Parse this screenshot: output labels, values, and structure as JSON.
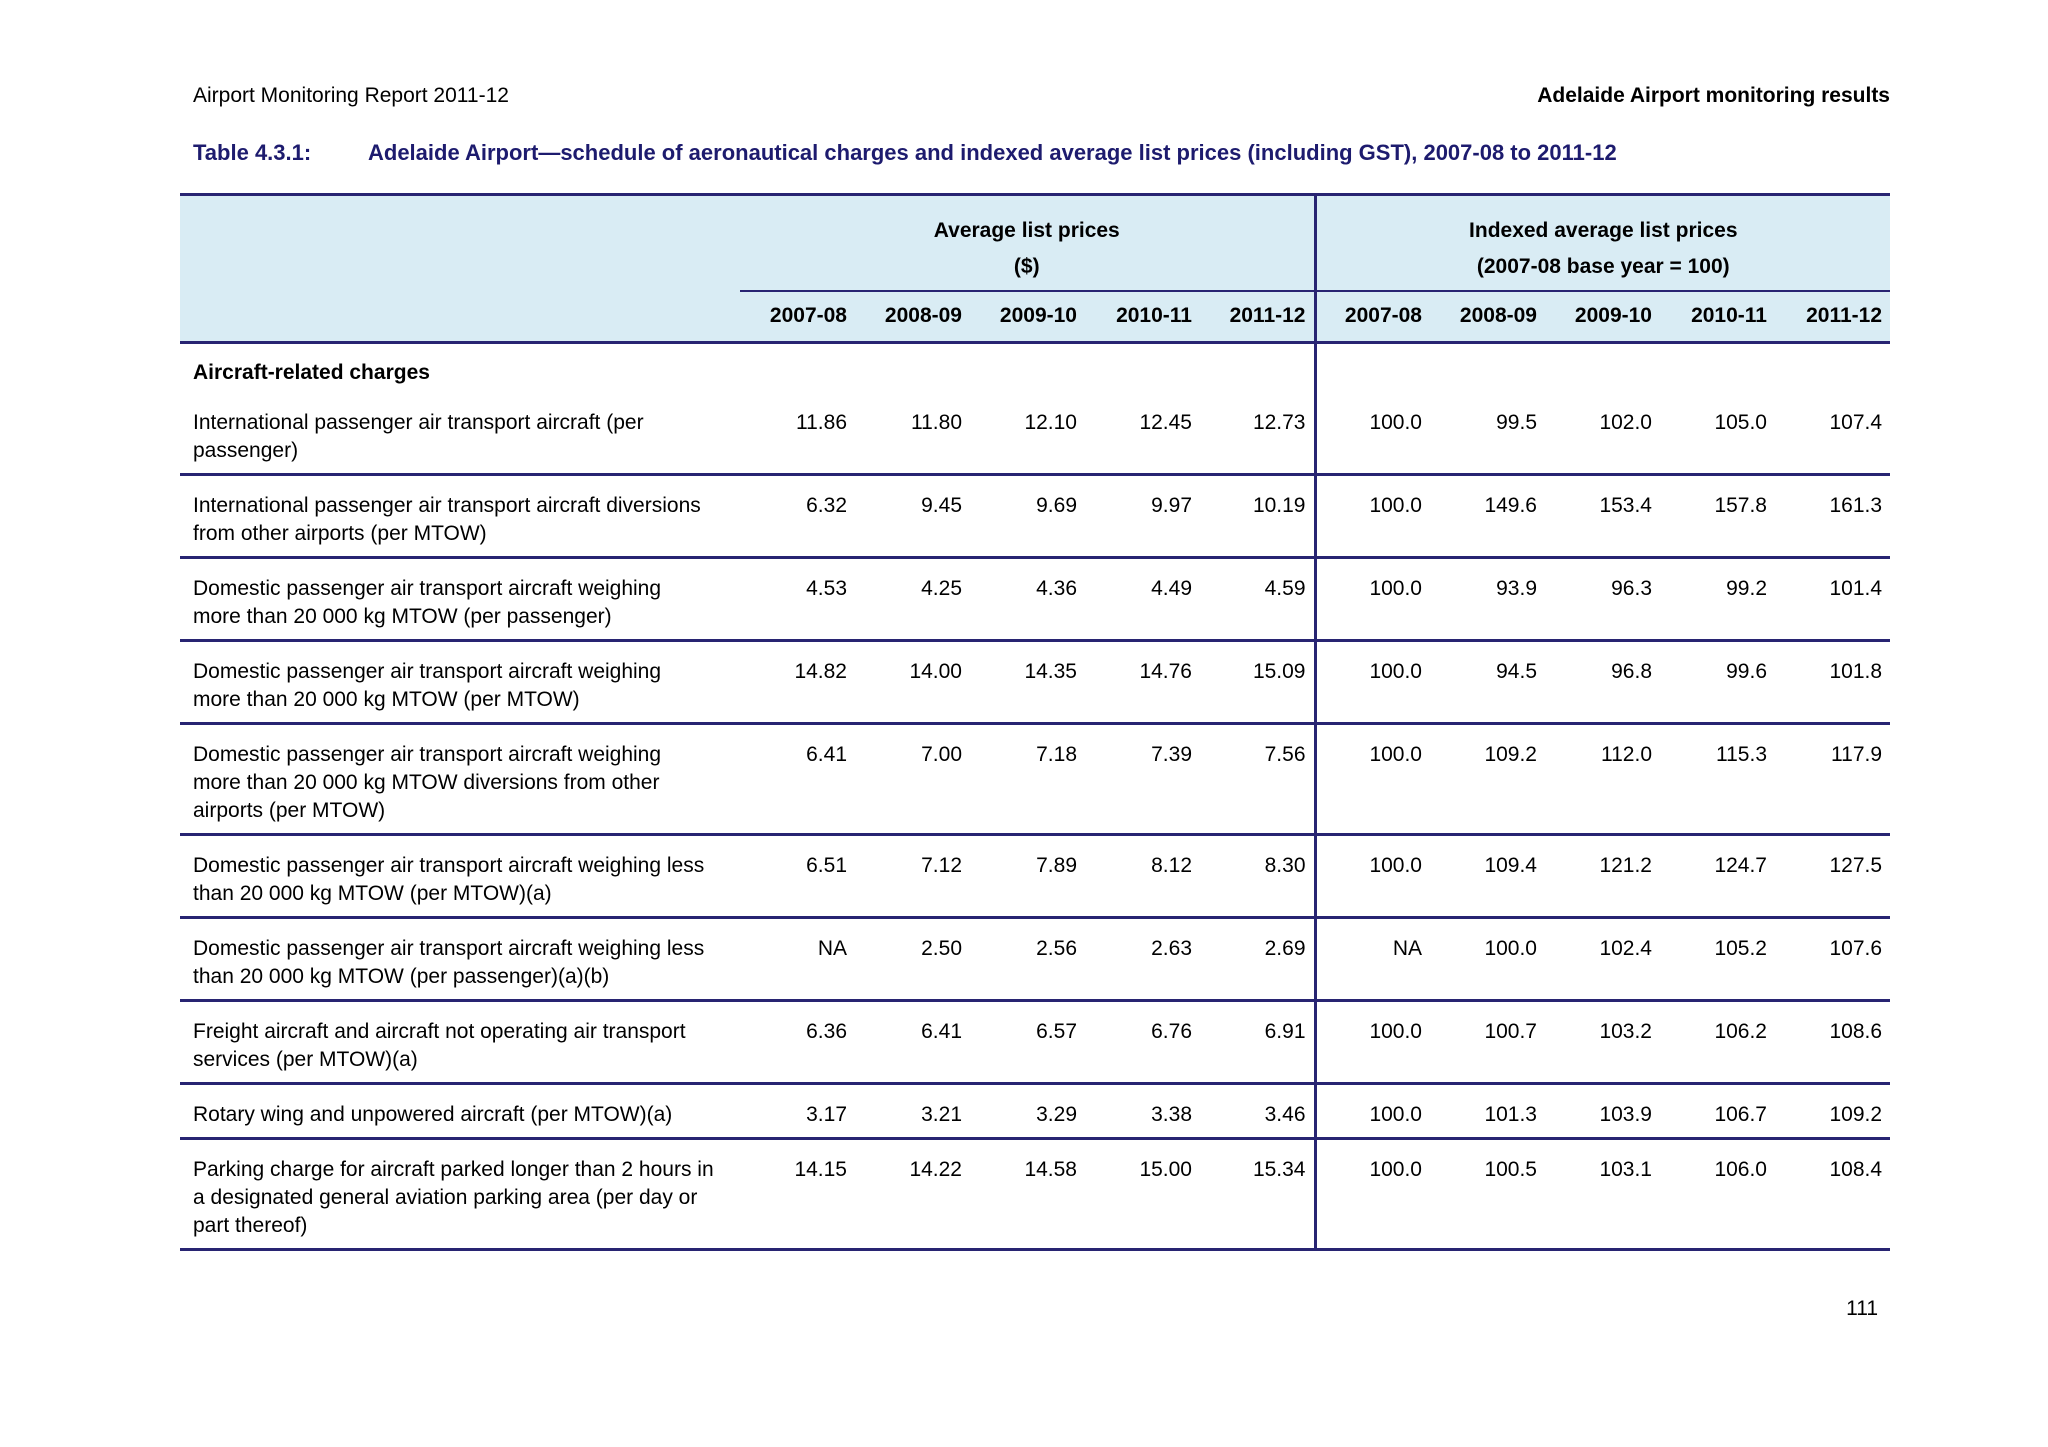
{
  "page_header": {
    "left": "Airport Monitoring Report 2011-12",
    "right": "Adelaide Airport monitoring results"
  },
  "table_title": {
    "number": "Table 4.3.1:",
    "caption": "Adelaide Airport—schedule of aeronautical charges and indexed average list prices (including GST), 2007-08 to 2011-12"
  },
  "table": {
    "group_headers": [
      {
        "title": "Average list prices",
        "subtitle": "($)"
      },
      {
        "title": "Indexed average list prices",
        "subtitle": "(2007-08 base year = 100)"
      }
    ],
    "year_columns": [
      "2007-08",
      "2008-09",
      "2009-10",
      "2010-11",
      "2011-12"
    ],
    "section_label": "Aircraft-related charges",
    "rows": [
      {
        "label": "International passenger air transport aircraft (per passenger)",
        "prices": [
          "11.86",
          "11.80",
          "12.10",
          "12.45",
          "12.73"
        ],
        "indexed": [
          "100.0",
          "99.5",
          "102.0",
          "105.0",
          "107.4"
        ]
      },
      {
        "label": "International passenger air transport aircraft diversions from other airports (per MTOW)",
        "prices": [
          "6.32",
          "9.45",
          "9.69",
          "9.97",
          "10.19"
        ],
        "indexed": [
          "100.0",
          "149.6",
          "153.4",
          "157.8",
          "161.3"
        ]
      },
      {
        "label": "Domestic passenger air transport aircraft weighing more than 20 000 kg MTOW (per passenger)",
        "prices": [
          "4.53",
          "4.25",
          "4.36",
          "4.49",
          "4.59"
        ],
        "indexed": [
          "100.0",
          "93.9",
          "96.3",
          "99.2",
          "101.4"
        ]
      },
      {
        "label": "Domestic passenger air transport aircraft weighing more than 20 000 kg MTOW (per MTOW)",
        "prices": [
          "14.82",
          "14.00",
          "14.35",
          "14.76",
          "15.09"
        ],
        "indexed": [
          "100.0",
          "94.5",
          "96.8",
          "99.6",
          "101.8"
        ]
      },
      {
        "label": "Domestic passenger air transport aircraft weighing more than 20 000 kg MTOW diversions from other airports (per MTOW)",
        "prices": [
          "6.41",
          "7.00",
          "7.18",
          "7.39",
          "7.56"
        ],
        "indexed": [
          "100.0",
          "109.2",
          "112.0",
          "115.3",
          "117.9"
        ]
      },
      {
        "label": "Domestic passenger air transport aircraft weighing less than 20 000 kg MTOW (per MTOW)(a)",
        "prices": [
          "6.51",
          "7.12",
          "7.89",
          "8.12",
          "8.30"
        ],
        "indexed": [
          "100.0",
          "109.4",
          "121.2",
          "124.7",
          "127.5"
        ]
      },
      {
        "label": "Domestic passenger air transport aircraft weighing less than 20 000 kg MTOW (per passenger)(a)(b)",
        "prices": [
          "NA",
          "2.50",
          "2.56",
          "2.63",
          "2.69"
        ],
        "indexed": [
          "NA",
          "100.0",
          "102.4",
          "105.2",
          "107.6"
        ]
      },
      {
        "label": "Freight aircraft and aircraft not operating air transport services (per MTOW)(a)",
        "prices": [
          "6.36",
          "6.41",
          "6.57",
          "6.76",
          "6.91"
        ],
        "indexed": [
          "100.0",
          "100.7",
          "103.2",
          "106.2",
          "108.6"
        ]
      },
      {
        "label": "Rotary wing and unpowered aircraft (per MTOW)(a)",
        "prices": [
          "3.17",
          "3.21",
          "3.29",
          "3.38",
          "3.46"
        ],
        "indexed": [
          "100.0",
          "101.3",
          "103.9",
          "106.7",
          "109.2"
        ]
      },
      {
        "label": "Parking charge for aircraft parked longer than 2 hours in a designated general aviation parking area (per day or part thereof)",
        "prices": [
          "14.15",
          "14.22",
          "14.58",
          "15.00",
          "15.34"
        ],
        "indexed": [
          "100.0",
          "100.5",
          "103.1",
          "106.0",
          "108.4"
        ]
      }
    ]
  },
  "page_number": "111",
  "colors": {
    "line_navy": "#282472",
    "title_navy": "#1d1b6e",
    "header_bg": "#d9ecf4"
  }
}
